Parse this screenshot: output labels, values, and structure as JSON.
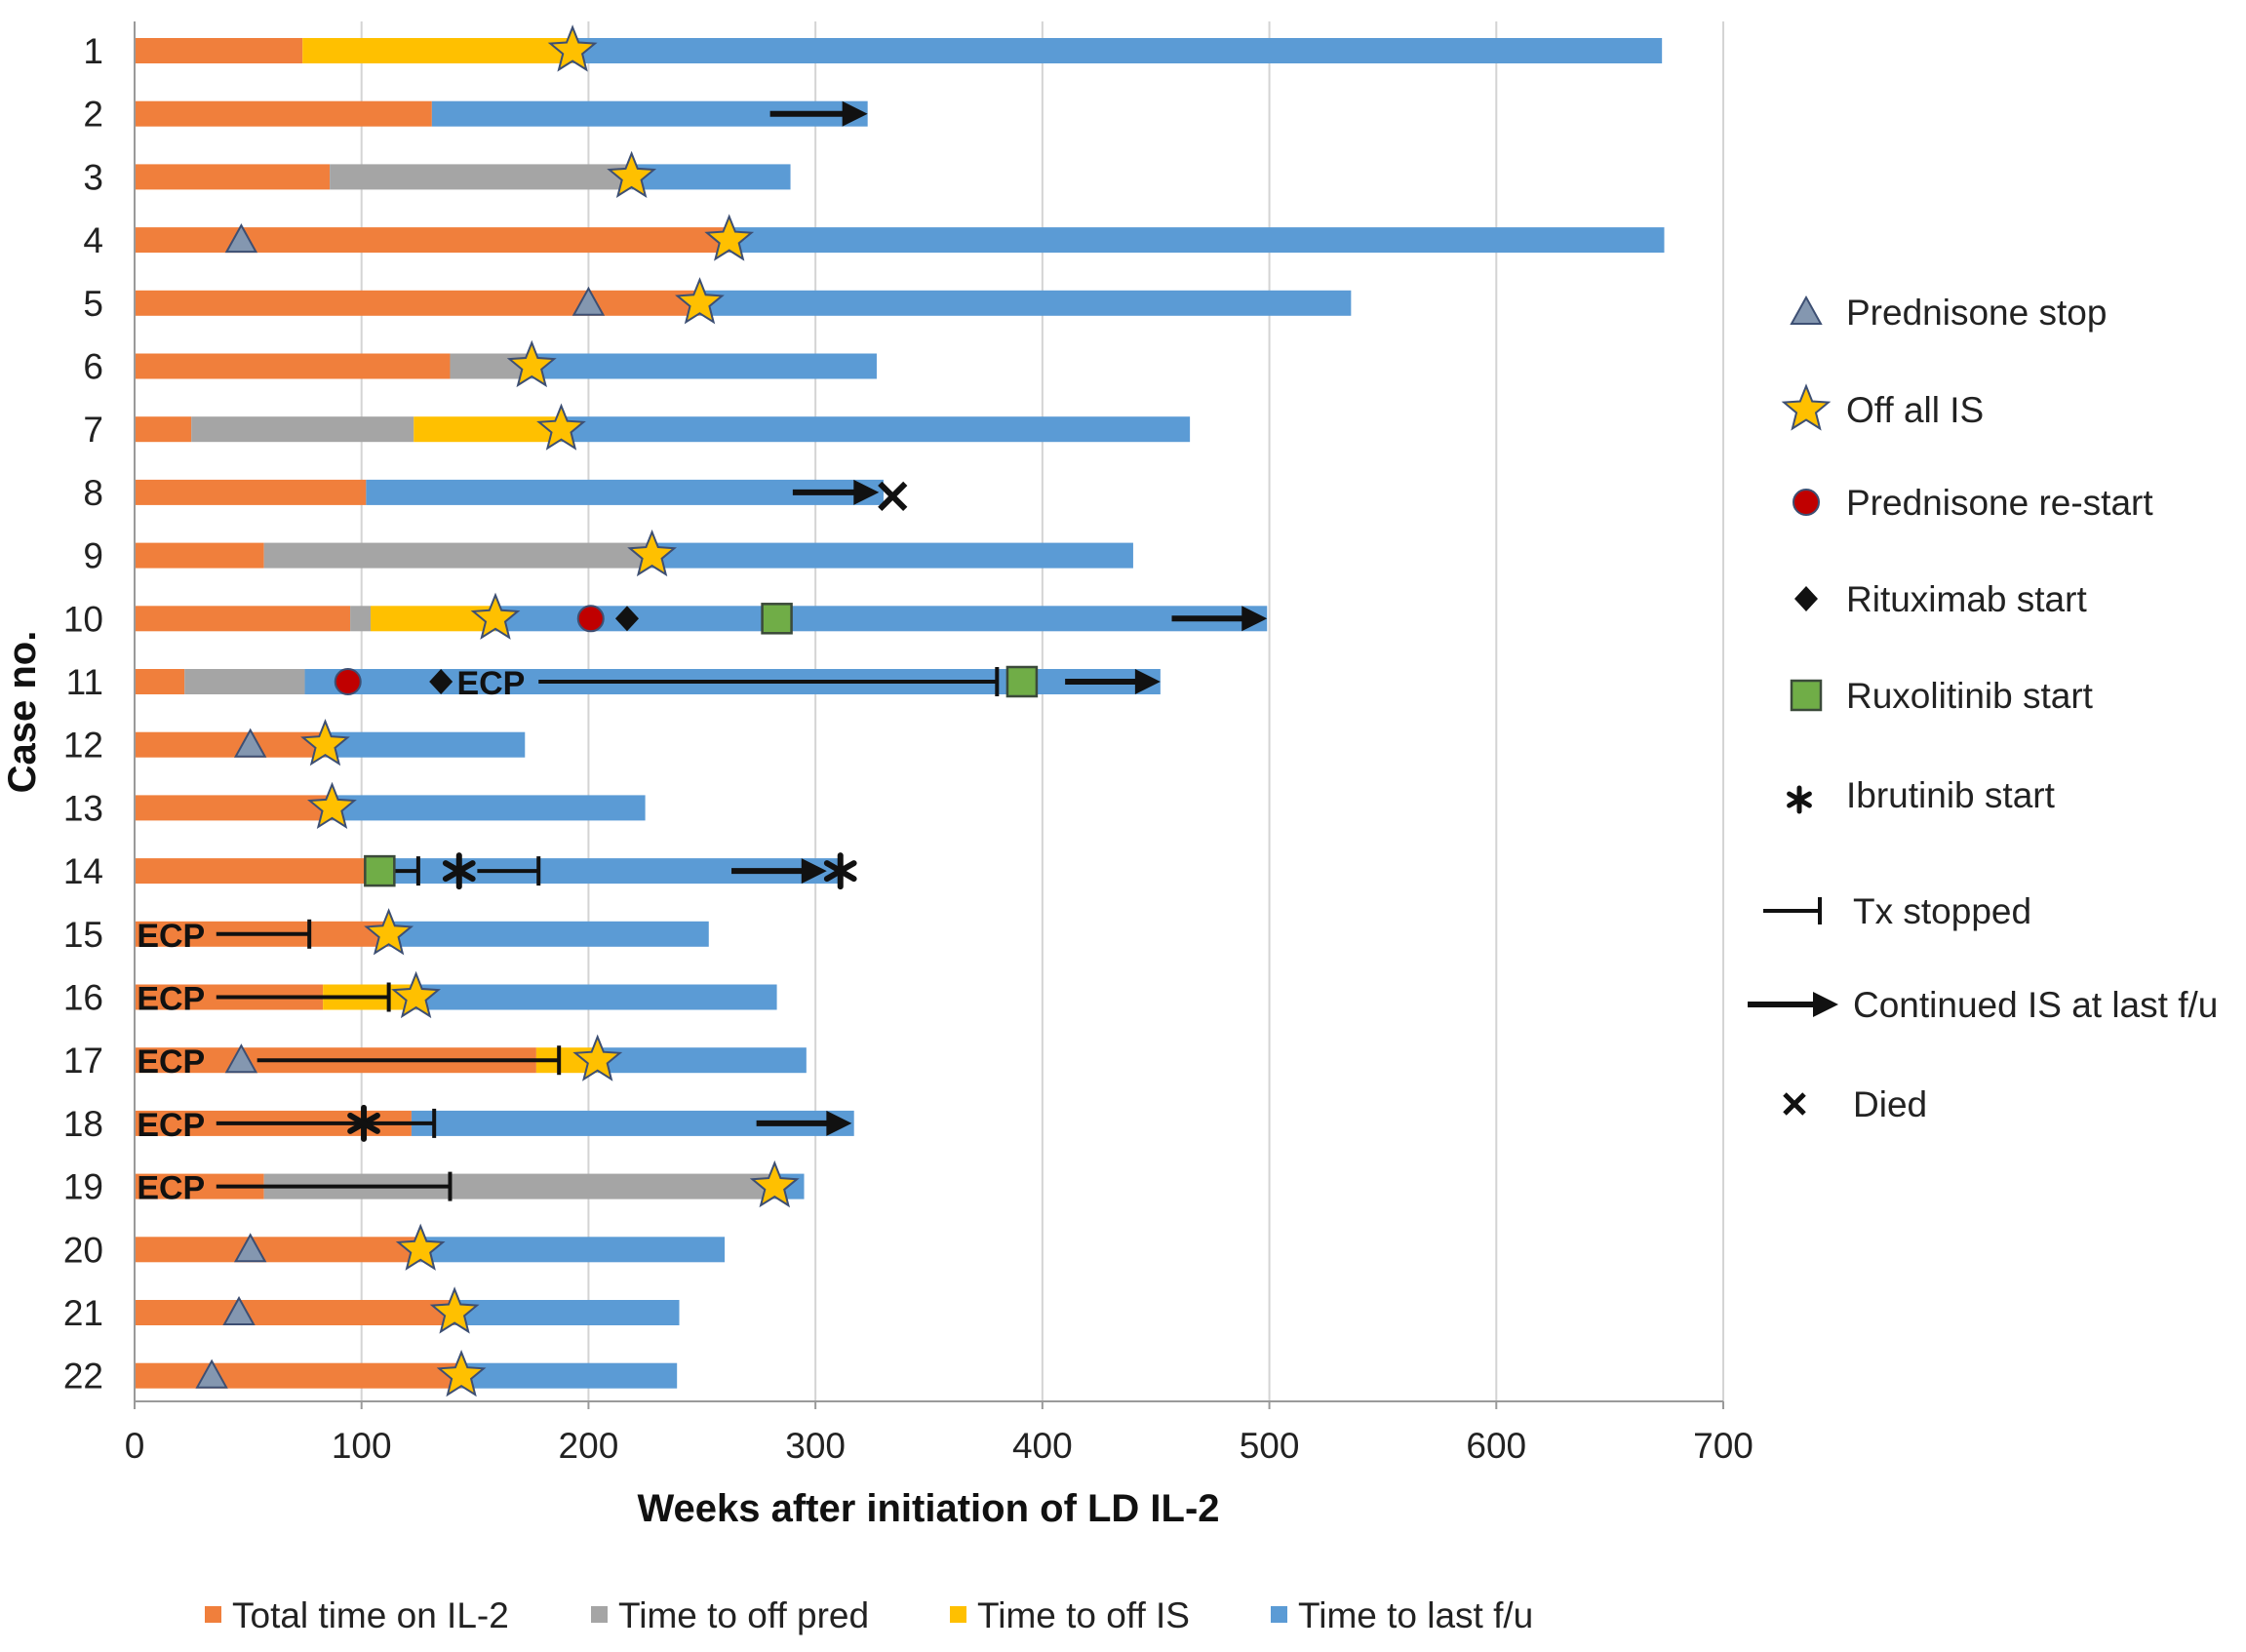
{
  "chart_data": {
    "type": "bar",
    "orientation": "horizontal-stacked",
    "ylabel": "Case no.",
    "xlabel": "Weeks after initiation of LD IL-2",
    "xlim": [
      0,
      700
    ],
    "xticks": [
      0,
      100,
      200,
      300,
      400,
      500,
      600,
      700
    ],
    "grid": "vertical",
    "colors": {
      "il2": "#f07f3c",
      "pred": "#a5a5a5",
      "is": "#ffc000",
      "fu": "#5b9bd5",
      "star": "#ffc000",
      "triangle": "#8497b0",
      "circle": "#c00000",
      "square": "#70ad47",
      "black": "#111111"
    },
    "series_legend": [
      {
        "key": "il2",
        "label": "Total time on IL-2"
      },
      {
        "key": "pred",
        "label": "Time to off pred"
      },
      {
        "key": "is",
        "label": "Time to off IS"
      },
      {
        "key": "fu",
        "label": "Time to last f/u"
      }
    ],
    "marker_legend": [
      {
        "type": "triangle",
        "label": "Prednisone stop"
      },
      {
        "type": "star",
        "label": "Off all IS"
      },
      {
        "type": "circle",
        "label": "Prednisone re-start"
      },
      {
        "type": "diamond",
        "label": "Rituximab start"
      },
      {
        "type": "square",
        "label": "Ruxolitinib start"
      },
      {
        "type": "asterisk",
        "label": "Ibrutinib start"
      },
      {
        "type": "stop",
        "label": "Tx stopped"
      },
      {
        "type": "arrow",
        "label": "Continued IS at last f/u"
      },
      {
        "type": "x",
        "label": "Died"
      }
    ],
    "ecp_label": "ECP",
    "died_symbol": "x",
    "cases": [
      {
        "case": "1",
        "segments": [
          {
            "s": "il2",
            "from": 0,
            "to": 74
          },
          {
            "s": "is",
            "from": 74,
            "to": 193
          },
          {
            "s": "fu",
            "from": 193,
            "to": 673
          }
        ],
        "markers": [
          {
            "t": "star",
            "x": 193
          }
        ]
      },
      {
        "case": "2",
        "segments": [
          {
            "s": "il2",
            "from": 0,
            "to": 131
          },
          {
            "s": "fu",
            "from": 131,
            "to": 323
          }
        ],
        "markers": [
          {
            "t": "arrow",
            "x1": 280,
            "x2": 323
          }
        ]
      },
      {
        "case": "3",
        "segments": [
          {
            "s": "il2",
            "from": 0,
            "to": 86
          },
          {
            "s": "pred",
            "from": 86,
            "to": 219
          },
          {
            "s": "fu",
            "from": 219,
            "to": 289
          }
        ],
        "markers": [
          {
            "t": "star",
            "x": 219
          }
        ]
      },
      {
        "case": "4",
        "segments": [
          {
            "s": "il2",
            "from": 0,
            "to": 262
          },
          {
            "s": "fu",
            "from": 262,
            "to": 674
          }
        ],
        "markers": [
          {
            "t": "triangle",
            "x": 47
          },
          {
            "t": "star",
            "x": 262
          }
        ]
      },
      {
        "case": "5",
        "segments": [
          {
            "s": "il2",
            "from": 0,
            "to": 249
          },
          {
            "s": "fu",
            "from": 249,
            "to": 536
          }
        ],
        "markers": [
          {
            "t": "triangle",
            "x": 200
          },
          {
            "t": "star",
            "x": 249
          }
        ]
      },
      {
        "case": "6",
        "segments": [
          {
            "s": "il2",
            "from": 0,
            "to": 139
          },
          {
            "s": "pred",
            "from": 139,
            "to": 175
          },
          {
            "s": "fu",
            "from": 175,
            "to": 327
          }
        ],
        "markers": [
          {
            "t": "star",
            "x": 175
          }
        ]
      },
      {
        "case": "7",
        "segments": [
          {
            "s": "il2",
            "from": 0,
            "to": 25
          },
          {
            "s": "pred",
            "from": 25,
            "to": 123
          },
          {
            "s": "is",
            "from": 123,
            "to": 188
          },
          {
            "s": "fu",
            "from": 188,
            "to": 465
          }
        ],
        "markers": [
          {
            "t": "star",
            "x": 188
          }
        ]
      },
      {
        "case": "8",
        "segments": [
          {
            "s": "il2",
            "from": 0,
            "to": 102
          },
          {
            "s": "fu",
            "from": 102,
            "to": 330
          }
        ],
        "markers": [
          {
            "t": "arrow",
            "x1": 290,
            "x2": 328
          },
          {
            "t": "x",
            "x": 334
          }
        ]
      },
      {
        "case": "9",
        "segments": [
          {
            "s": "il2",
            "from": 0,
            "to": 57
          },
          {
            "s": "pred",
            "from": 57,
            "to": 228
          },
          {
            "s": "fu",
            "from": 228,
            "to": 440
          }
        ],
        "markers": [
          {
            "t": "star",
            "x": 228
          }
        ]
      },
      {
        "case": "10",
        "segments": [
          {
            "s": "il2",
            "from": 0,
            "to": 95
          },
          {
            "s": "pred",
            "from": 95,
            "to": 104
          },
          {
            "s": "is",
            "from": 104,
            "to": 159
          },
          {
            "s": "fu",
            "from": 159,
            "to": 499
          }
        ],
        "markers": [
          {
            "t": "star",
            "x": 159
          },
          {
            "t": "circle",
            "x": 201
          },
          {
            "t": "diamond",
            "x": 217
          },
          {
            "t": "square",
            "x": 283
          },
          {
            "t": "arrow",
            "x1": 457,
            "x2": 499
          }
        ]
      },
      {
        "case": "11",
        "segments": [
          {
            "s": "il2",
            "from": 0,
            "to": 22
          },
          {
            "s": "pred",
            "from": 22,
            "to": 75
          },
          {
            "s": "fu",
            "from": 75,
            "to": 452
          }
        ],
        "markers": [
          {
            "t": "circle",
            "x": 94
          },
          {
            "t": "diamond",
            "x": 135
          },
          {
            "t": "ecp",
            "x": 142
          },
          {
            "t": "txline",
            "x1": 178,
            "x2": 380
          },
          {
            "t": "square",
            "x": 391
          },
          {
            "t": "arrow",
            "x1": 410,
            "x2": 452
          }
        ]
      },
      {
        "case": "12",
        "segments": [
          {
            "s": "il2",
            "from": 0,
            "to": 84
          },
          {
            "s": "fu",
            "from": 84,
            "to": 172
          }
        ],
        "markers": [
          {
            "t": "triangle",
            "x": 51
          },
          {
            "t": "star",
            "x": 84
          }
        ]
      },
      {
        "case": "13",
        "segments": [
          {
            "s": "il2",
            "from": 0,
            "to": 87
          },
          {
            "s": "fu",
            "from": 87,
            "to": 225
          }
        ],
        "markers": [
          {
            "t": "star",
            "x": 87
          }
        ]
      },
      {
        "case": "14",
        "segments": [
          {
            "s": "il2",
            "from": 0,
            "to": 108
          },
          {
            "s": "fu",
            "from": 108,
            "to": 312
          }
        ],
        "markers": [
          {
            "t": "square",
            "x": 108
          },
          {
            "t": "txline",
            "x1": 114,
            "x2": 125
          },
          {
            "t": "asterisk",
            "x": 143
          },
          {
            "t": "txline",
            "x1": 151,
            "x2": 178
          },
          {
            "t": "arrow",
            "x1": 263,
            "x2": 305
          },
          {
            "t": "asterisk",
            "x": 311
          }
        ]
      },
      {
        "case": "15",
        "segments": [
          {
            "s": "il2",
            "from": 0,
            "to": 112
          },
          {
            "s": "fu",
            "from": 112,
            "to": 253
          }
        ],
        "markers": [
          {
            "t": "ecp",
            "x": 1
          },
          {
            "t": "txline",
            "x1": 36,
            "x2": 77
          },
          {
            "t": "star",
            "x": 112
          }
        ]
      },
      {
        "case": "16",
        "segments": [
          {
            "s": "il2",
            "from": 0,
            "to": 83
          },
          {
            "s": "is",
            "from": 83,
            "to": 124
          },
          {
            "s": "fu",
            "from": 124,
            "to": 283
          }
        ],
        "markers": [
          {
            "t": "ecp",
            "x": 1
          },
          {
            "t": "txline",
            "x1": 36,
            "x2": 112
          },
          {
            "t": "star",
            "x": 124
          }
        ]
      },
      {
        "case": "17",
        "segments": [
          {
            "s": "il2",
            "from": 0,
            "to": 177
          },
          {
            "s": "is",
            "from": 177,
            "to": 204
          },
          {
            "s": "fu",
            "from": 204,
            "to": 296
          }
        ],
        "markers": [
          {
            "t": "ecp",
            "x": 1
          },
          {
            "t": "triangle",
            "x": 47
          },
          {
            "t": "txline",
            "x1": 54,
            "x2": 187
          },
          {
            "t": "star",
            "x": 204
          }
        ]
      },
      {
        "case": "18",
        "segments": [
          {
            "s": "il2",
            "from": 0,
            "to": 122
          },
          {
            "s": "fu",
            "from": 122,
            "to": 317
          }
        ],
        "markers": [
          {
            "t": "ecp",
            "x": 1
          },
          {
            "t": "txline",
            "x1": 36,
            "x2": 132
          },
          {
            "t": "asterisk",
            "x": 101
          },
          {
            "t": "arrow",
            "x1": 274,
            "x2": 316
          }
        ]
      },
      {
        "case": "19",
        "segments": [
          {
            "s": "il2",
            "from": 0,
            "to": 57
          },
          {
            "s": "pred",
            "from": 57,
            "to": 282
          },
          {
            "s": "fu",
            "from": 282,
            "to": 295
          }
        ],
        "markers": [
          {
            "t": "ecp",
            "x": 1
          },
          {
            "t": "txline",
            "x1": 36,
            "x2": 139
          },
          {
            "t": "star",
            "x": 282
          }
        ]
      },
      {
        "case": "20",
        "segments": [
          {
            "s": "il2",
            "from": 0,
            "to": 126
          },
          {
            "s": "fu",
            "from": 126,
            "to": 260
          }
        ],
        "markers": [
          {
            "t": "triangle",
            "x": 51
          },
          {
            "t": "star",
            "x": 126
          }
        ]
      },
      {
        "case": "21",
        "segments": [
          {
            "s": "il2",
            "from": 0,
            "to": 141
          },
          {
            "s": "fu",
            "from": 141,
            "to": 240
          }
        ],
        "markers": [
          {
            "t": "triangle",
            "x": 46
          },
          {
            "t": "star",
            "x": 141
          }
        ]
      },
      {
        "case": "22",
        "segments": [
          {
            "s": "il2",
            "from": 0,
            "to": 144
          },
          {
            "s": "fu",
            "from": 144,
            "to": 239
          }
        ],
        "markers": [
          {
            "t": "triangle",
            "x": 34
          },
          {
            "t": "star",
            "x": 144
          }
        ]
      }
    ]
  }
}
